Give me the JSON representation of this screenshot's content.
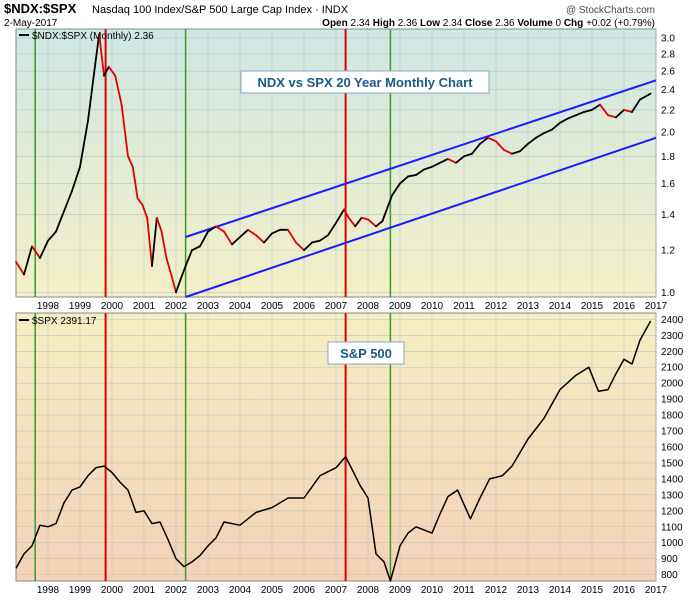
{
  "header": {
    "symbol": "$NDX:$SPX",
    "description": "Nasdaq 100 Index/S&P 500 Large Cap Index",
    "exchange": "INDX",
    "date": "2-May-2017",
    "watermark": "@ StockCharts.com",
    "open_label": "Open",
    "open": "2.34",
    "high_label": "High",
    "high": "2.36",
    "low_label": "Low",
    "low": "2.34",
    "close_label": "Close",
    "close": "2.36",
    "volume_label": "Volume",
    "volume": "0",
    "chg_label": "Chg",
    "chg": "+0.02 (+0.79%)"
  },
  "colors": {
    "ratio_up": "#000000",
    "ratio_down": "#e00000",
    "channel": "#1a1aff",
    "red_marker": "#e00000",
    "green_marker": "#3a9a2a"
  },
  "chart_data": [
    {
      "type": "line",
      "legend": "$NDX:$SPX (Monthly) 2.36",
      "annotation": "NDX vs SPX 20 Year Monthly Chart",
      "x_ticks": [
        "1998",
        "1999",
        "2000",
        "2001",
        "2002",
        "2003",
        "2004",
        "2005",
        "2006",
        "2007",
        "2008",
        "2009",
        "2010",
        "2011",
        "2012",
        "2013",
        "2014",
        "2015",
        "2016",
        "2017"
      ],
      "yticks": [
        "1.0",
        "1.2",
        "1.4",
        "1.6",
        "1.8",
        "2.0",
        "2.2",
        "2.4",
        "2.6",
        "2.8",
        "3.0"
      ],
      "ylim": [
        0.98,
        3.12
      ],
      "log_scale": true,
      "x": [
        1997.5,
        1997.75,
        1998.0,
        1998.25,
        1998.5,
        1998.75,
        1999.0,
        1999.25,
        1999.5,
        1999.75,
        2000.0,
        2000.1,
        2000.25,
        2000.4,
        2000.6,
        2000.8,
        2001.0,
        2001.15,
        2001.3,
        2001.45,
        2001.6,
        2001.75,
        2001.9,
        2002.05,
        2002.2,
        2002.35,
        2002.5,
        2002.65,
        2002.8,
        2003.0,
        2003.25,
        2003.5,
        2003.75,
        2004.0,
        2004.25,
        2004.5,
        2004.75,
        2005.0,
        2005.25,
        2005.5,
        2005.75,
        2006.0,
        2006.25,
        2006.5,
        2006.75,
        2007.0,
        2007.25,
        2007.5,
        2007.75,
        2007.9,
        2008.1,
        2008.3,
        2008.5,
        2008.75,
        2008.95,
        2009.25,
        2009.5,
        2009.75,
        2010.0,
        2010.25,
        2010.5,
        2010.75,
        2011.0,
        2011.25,
        2011.5,
        2011.75,
        2012.0,
        2012.25,
        2012.5,
        2012.75,
        2013.0,
        2013.25,
        2013.5,
        2013.75,
        2014.0,
        2014.25,
        2014.5,
        2014.75,
        2015.0,
        2015.25,
        2015.5,
        2015.75,
        2016.0,
        2016.25,
        2016.5,
        2016.75,
        2017.0,
        2017.33
      ],
      "y": [
        1.14,
        1.08,
        1.22,
        1.16,
        1.25,
        1.3,
        1.42,
        1.55,
        1.72,
        2.1,
        2.75,
        3.05,
        2.55,
        2.65,
        2.55,
        2.25,
        1.8,
        1.72,
        1.5,
        1.46,
        1.38,
        1.12,
        1.38,
        1.3,
        1.16,
        1.08,
        1.0,
        1.06,
        1.12,
        1.2,
        1.22,
        1.3,
        1.33,
        1.3,
        1.23,
        1.27,
        1.31,
        1.28,
        1.24,
        1.29,
        1.31,
        1.31,
        1.24,
        1.2,
        1.24,
        1.25,
        1.28,
        1.35,
        1.43,
        1.38,
        1.33,
        1.38,
        1.37,
        1.33,
        1.36,
        1.52,
        1.6,
        1.65,
        1.66,
        1.7,
        1.72,
        1.75,
        1.78,
        1.75,
        1.8,
        1.82,
        1.9,
        1.95,
        1.92,
        1.85,
        1.82,
        1.84,
        1.9,
        1.95,
        1.99,
        2.02,
        2.08,
        2.12,
        2.15,
        2.18,
        2.2,
        2.25,
        2.15,
        2.13,
        2.2,
        2.18,
        2.3,
        2.36
      ],
      "channel_lines": [
        {
          "x": [
            2002.8,
            2017.5
          ],
          "y": [
            1.27,
            2.5
          ]
        },
        {
          "x": [
            2002.8,
            2017.5
          ],
          "y": [
            0.98,
            1.95
          ]
        }
      ]
    },
    {
      "type": "line",
      "legend": "$SPX 2391.17",
      "annotation": "S&P 500",
      "x_ticks": [
        "1998",
        "1999",
        "2000",
        "2001",
        "2002",
        "2003",
        "2004",
        "2005",
        "2006",
        "2007",
        "2008",
        "2009",
        "2010",
        "2011",
        "2012",
        "2013",
        "2014",
        "2015",
        "2016",
        "2017"
      ],
      "yticks": [
        "800",
        "900",
        "1000",
        "1100",
        "1200",
        "1300",
        "1400",
        "1500",
        "1600",
        "1700",
        "1800",
        "1900",
        "2000",
        "2100",
        "2200",
        "2300",
        "2400"
      ],
      "ylim": [
        760,
        2440
      ],
      "log_scale": false,
      "x": [
        1997.5,
        1997.75,
        1998.0,
        1998.25,
        1998.5,
        1998.75,
        1999.0,
        1999.25,
        1999.5,
        1999.75,
        2000.0,
        2000.25,
        2000.5,
        2000.75,
        2001.0,
        2001.25,
        2001.5,
        2001.75,
        2002.0,
        2002.25,
        2002.5,
        2002.75,
        2003.0,
        2003.25,
        2003.5,
        2003.75,
        2004.0,
        2004.5,
        2005.0,
        2005.5,
        2006.0,
        2006.5,
        2007.0,
        2007.5,
        2007.8,
        2008.0,
        2008.25,
        2008.5,
        2008.75,
        2009.0,
        2009.2,
        2009.5,
        2009.75,
        2010.0,
        2010.5,
        2010.75,
        2011.0,
        2011.3,
        2011.7,
        2012.0,
        2012.3,
        2012.7,
        2013.0,
        2013.5,
        2014.0,
        2014.5,
        2015.0,
        2015.4,
        2015.7,
        2016.0,
        2016.25,
        2016.5,
        2016.75,
        2017.0,
        2017.33
      ],
      "y": [
        840,
        930,
        980,
        1110,
        1100,
        1120,
        1250,
        1330,
        1350,
        1420,
        1470,
        1480,
        1440,
        1380,
        1330,
        1190,
        1200,
        1120,
        1130,
        1020,
        900,
        850,
        880,
        920,
        980,
        1030,
        1130,
        1110,
        1190,
        1220,
        1280,
        1280,
        1420,
        1470,
        1540,
        1460,
        1360,
        1280,
        930,
        880,
        760,
        980,
        1060,
        1100,
        1060,
        1180,
        1290,
        1330,
        1150,
        1280,
        1400,
        1420,
        1480,
        1650,
        1780,
        1960,
        2050,
        2100,
        1950,
        1960,
        2060,
        2150,
        2120,
        2270,
        2390
      ]
    }
  ],
  "vertical_markers": {
    "red_years": [
      2000.3,
      2007.8
    ],
    "green_years": [
      1998.1,
      2002.8,
      2009.2
    ]
  }
}
